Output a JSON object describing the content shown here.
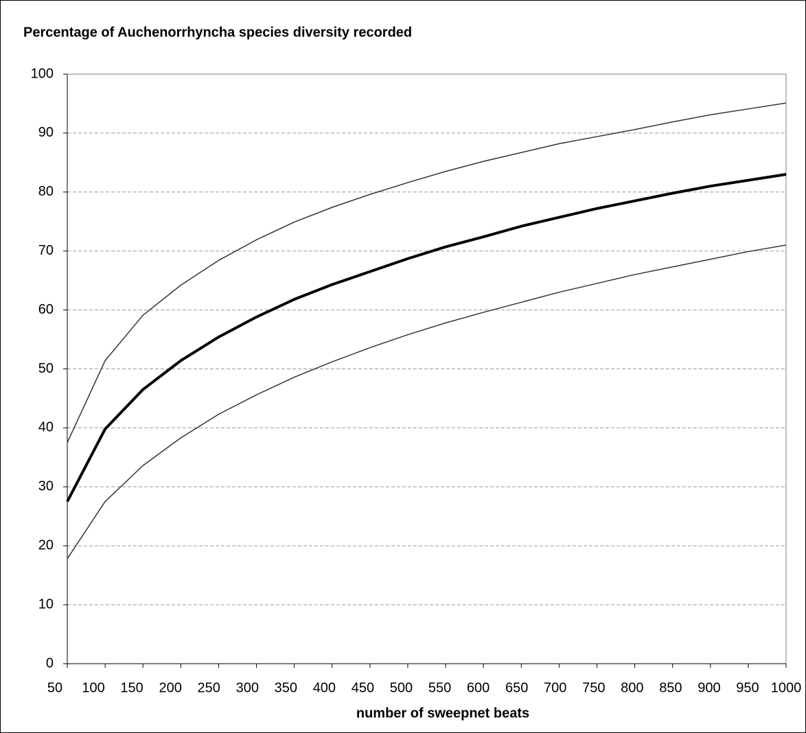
{
  "chart_data": {
    "type": "line",
    "title": "Percentage of Auchenorrhyncha species diversity recorded",
    "x_label": "number of sweepnet beats",
    "x": [
      50,
      100,
      150,
      200,
      250,
      300,
      350,
      400,
      450,
      500,
      550,
      600,
      650,
      700,
      750,
      800,
      850,
      900,
      950,
      1000
    ],
    "series": [
      {
        "color": "#333333",
        "line_width": 1.5,
        "values": [
          37.5,
          51.4,
          59.1,
          64.2,
          68.4,
          71.9,
          74.9,
          77.4,
          79.6,
          81.6,
          83.5,
          85.2,
          86.7,
          88.2,
          89.4,
          90.6,
          91.9,
          93.1,
          94.1,
          95.1
        ]
      },
      {
        "color": "#000000",
        "line_width": 4,
        "values": [
          27.5,
          39.8,
          46.5,
          51.4,
          55.4,
          58.8,
          61.8,
          64.3,
          66.5,
          68.7,
          70.7,
          72.4,
          74.2,
          75.7,
          77.2,
          78.5,
          79.8,
          81.0,
          82.0,
          83.0
        ]
      },
      {
        "color": "#333333",
        "line_width": 1.5,
        "values": [
          17.8,
          27.5,
          33.6,
          38.3,
          42.3,
          45.6,
          48.6,
          51.2,
          53.6,
          55.8,
          57.8,
          59.6,
          61.3,
          63.0,
          64.5,
          66.0,
          67.3,
          68.6,
          69.9,
          71.0
        ]
      }
    ],
    "xlim": [
      50,
      1000
    ],
    "xticks": [
      50,
      100,
      150,
      200,
      250,
      300,
      350,
      400,
      450,
      500,
      550,
      600,
      650,
      700,
      750,
      800,
      850,
      900,
      950,
      1000
    ],
    "ylim": [
      0,
      100
    ],
    "yticks": [
      0,
      10,
      20,
      30,
      40,
      50,
      60,
      70,
      80,
      90,
      100
    ],
    "grid": true
  }
}
